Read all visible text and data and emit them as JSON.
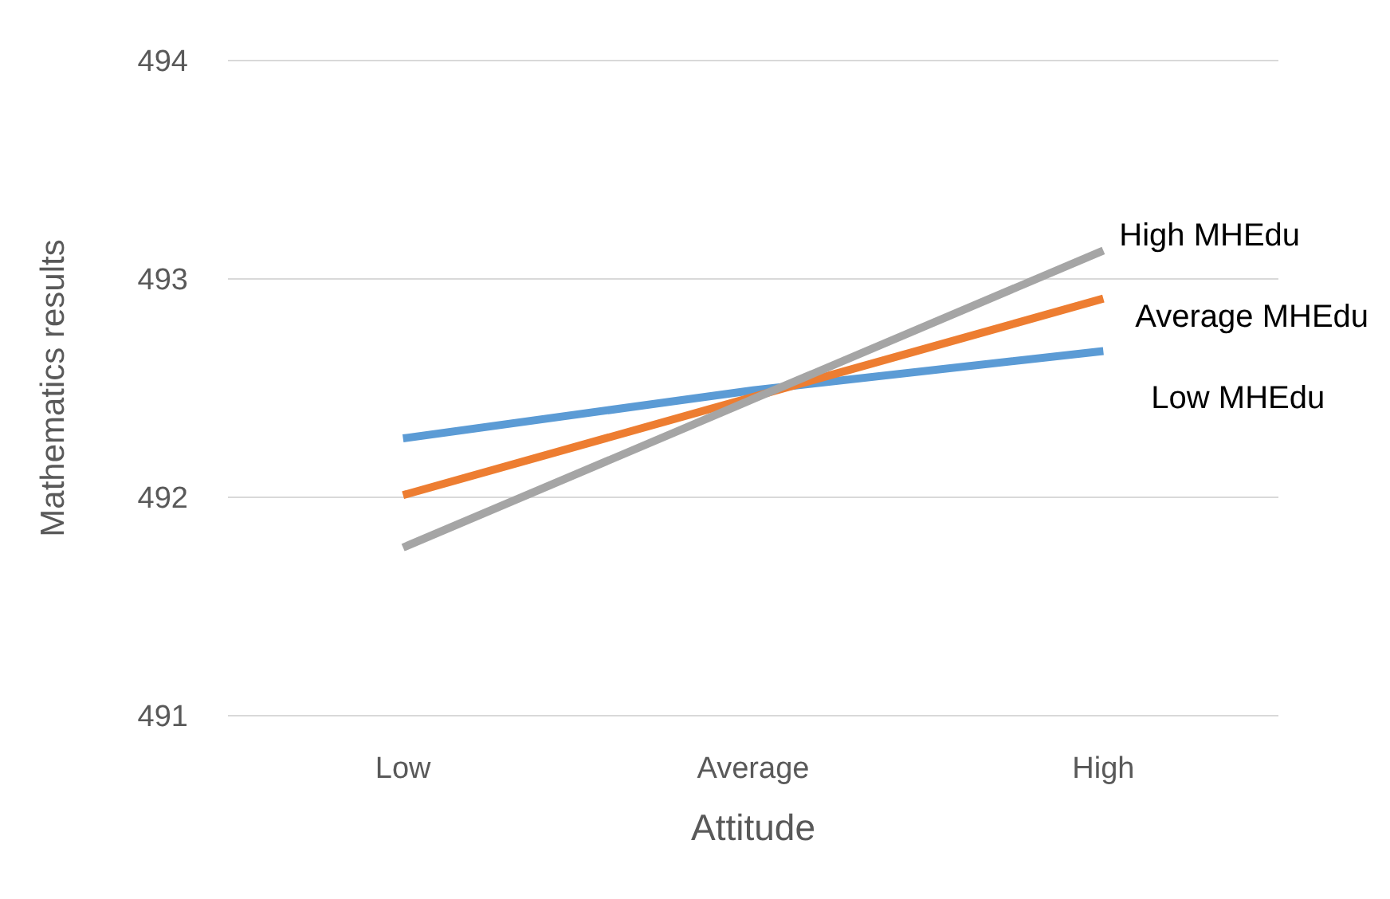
{
  "chart_data": {
    "type": "line",
    "xlabel": "Attitude",
    "ylabel": "Mathematics results",
    "categories": [
      "Low",
      "Average",
      "High"
    ],
    "series": [
      {
        "name": "Low MHEdu",
        "color": "#5b9bd5",
        "values": [
          492.27,
          492.49,
          492.67
        ]
      },
      {
        "name": "Average MHEdu",
        "color": "#ed7d31",
        "values": [
          492.01,
          492.46,
          492.91
        ]
      },
      {
        "name": "High MHEdu",
        "color": "#a5a5a5",
        "values": [
          491.77,
          492.45,
          493.13
        ]
      }
    ],
    "ylim": [
      491,
      494
    ],
    "yticks": [
      491,
      492,
      493,
      494
    ],
    "grid": "y"
  }
}
